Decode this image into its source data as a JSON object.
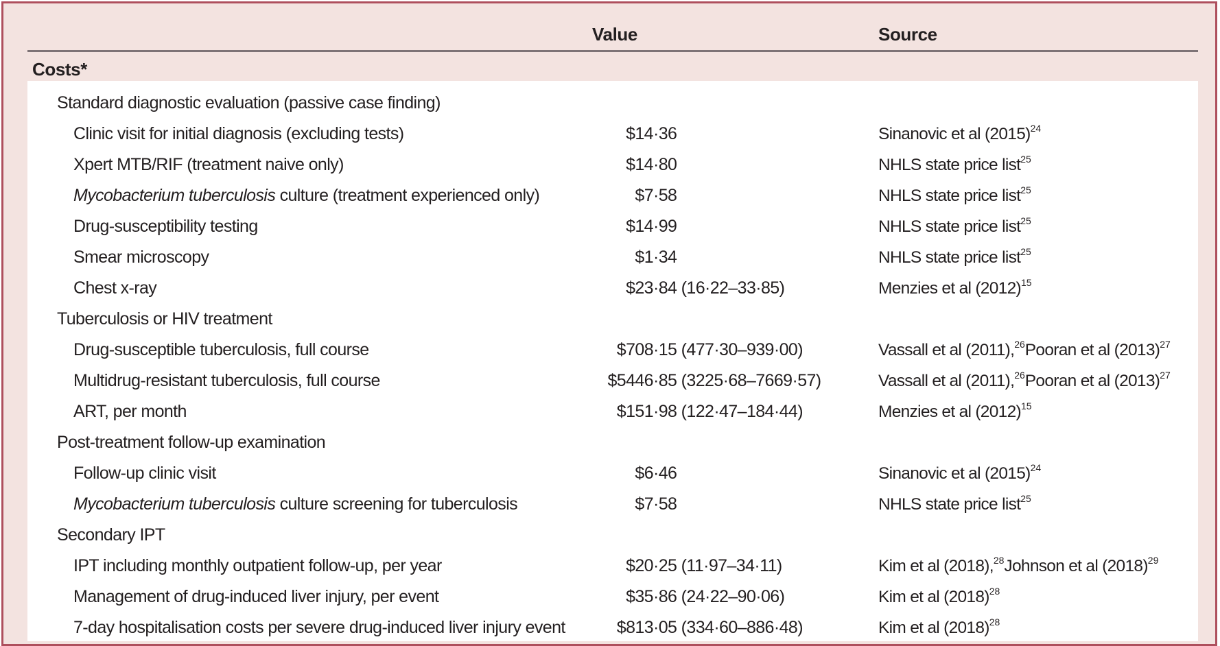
{
  "table": {
    "columns": [
      "Value",
      "Source"
    ],
    "section_header": "Costs*",
    "rows": [
      {
        "type": "section",
        "label": [
          {
            "t": "Standard diagnostic evaluation (passive case finding)"
          }
        ]
      },
      {
        "type": "item",
        "label": [
          {
            "t": "Clinic visit for initial diagnosis (excluding tests)"
          }
        ],
        "value": "$14·36",
        "source": [
          {
            "t": "Sinanovic et al (2015)"
          },
          {
            "t": "24",
            "sup": true
          }
        ]
      },
      {
        "type": "item",
        "label": [
          {
            "t": "Xpert MTB/RIF (treatment naive only)"
          }
        ],
        "value": "$14·80",
        "source": [
          {
            "t": "NHLS state price list"
          },
          {
            "t": "25",
            "sup": true
          }
        ]
      },
      {
        "type": "item",
        "label": [
          {
            "t": "Mycobacterium tuberculosis",
            "italic": true
          },
          {
            "t": " culture (treatment experienced only)"
          }
        ],
        "value": "$7·58",
        "source": [
          {
            "t": "NHLS state price list"
          },
          {
            "t": "25",
            "sup": true
          }
        ]
      },
      {
        "type": "item",
        "label": [
          {
            "t": "Drug-susceptibility testing"
          }
        ],
        "value": "$14·99",
        "source": [
          {
            "t": "NHLS state price list"
          },
          {
            "t": "25",
            "sup": true
          }
        ]
      },
      {
        "type": "item",
        "label": [
          {
            "t": "Smear microscopy"
          }
        ],
        "value": "$1·34",
        "source": [
          {
            "t": "NHLS state price list"
          },
          {
            "t": "25",
            "sup": true
          }
        ]
      },
      {
        "type": "item",
        "label": [
          {
            "t": "Chest x-ray"
          }
        ],
        "value": "$23·84 (16·22–33·85)",
        "source": [
          {
            "t": "Menzies et al (2012)"
          },
          {
            "t": "15",
            "sup": true
          }
        ]
      },
      {
        "type": "section",
        "label": [
          {
            "t": "Tuberculosis or HIV treatment"
          }
        ]
      },
      {
        "type": "item",
        "label": [
          {
            "t": "Drug-susceptible tuberculosis, full course"
          }
        ],
        "value": "$708·15 (477·30–939·00)",
        "source": [
          {
            "t": "Vassall et al (2011),"
          },
          {
            "t": "26",
            "sup": true
          },
          {
            "t": " Pooran et al (2013)"
          },
          {
            "t": "27",
            "sup": true
          }
        ]
      },
      {
        "type": "item",
        "label": [
          {
            "t": "Multidrug-resistant tuberculosis, full course"
          }
        ],
        "value": "$5446·85 (3225·68–7669·57)",
        "source": [
          {
            "t": "Vassall et al (2011),"
          },
          {
            "t": "26",
            "sup": true
          },
          {
            "t": " Pooran et al (2013)"
          },
          {
            "t": "27",
            "sup": true
          }
        ]
      },
      {
        "type": "item",
        "label": [
          {
            "t": "ART, per month"
          }
        ],
        "value": "$151·98 (122·47–184·44)",
        "source": [
          {
            "t": "Menzies et al (2012)"
          },
          {
            "t": "15",
            "sup": true
          }
        ]
      },
      {
        "type": "section",
        "label": [
          {
            "t": "Post-treatment follow-up examination"
          }
        ]
      },
      {
        "type": "item",
        "label": [
          {
            "t": "Follow-up clinic visit"
          }
        ],
        "value": "$6·46",
        "source": [
          {
            "t": "Sinanovic et al (2015)"
          },
          {
            "t": "24",
            "sup": true
          }
        ]
      },
      {
        "type": "item",
        "label": [
          {
            "t": "Mycobacterium tuberculosis",
            "italic": true
          },
          {
            "t": " culture screening for tuberculosis"
          }
        ],
        "value": "$7·58",
        "source": [
          {
            "t": "NHLS state price list"
          },
          {
            "t": "25",
            "sup": true
          }
        ]
      },
      {
        "type": "section",
        "label": [
          {
            "t": "Secondary IPT"
          }
        ]
      },
      {
        "type": "item",
        "label": [
          {
            "t": "IPT including monthly outpatient follow-up, per year"
          }
        ],
        "value": "$20·25 (11·97–34·11)",
        "source": [
          {
            "t": "Kim et al (2018),"
          },
          {
            "t": "28",
            "sup": true
          },
          {
            "t": " Johnson et al (2018)"
          },
          {
            "t": "29",
            "sup": true
          }
        ]
      },
      {
        "type": "item",
        "label": [
          {
            "t": "Management of drug-induced liver injury, per event"
          }
        ],
        "value": "$35·86 (24·22–90·06)",
        "source": [
          {
            "t": "Kim et al (2018)"
          },
          {
            "t": "28",
            "sup": true
          }
        ]
      },
      {
        "type": "item",
        "label": [
          {
            "t": "7-day hospitalisation costs per severe drug-induced liver injury event"
          }
        ],
        "value": "$813·05 (334·60–886·48)",
        "source": [
          {
            "t": "Kim et al (2018)"
          },
          {
            "t": "28",
            "sup": true
          }
        ]
      }
    ]
  },
  "colors": {
    "table_background": "#f3e3e0",
    "panel_background": "#ffffff",
    "border": "#ae4f5d",
    "header_rule": "#7d7376",
    "text": "#231f20"
  }
}
